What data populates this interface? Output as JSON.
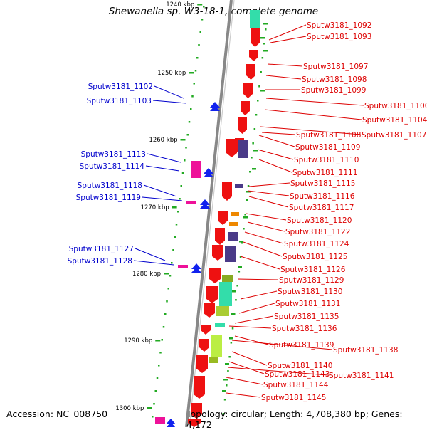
{
  "title": "Shewanella sp. W3-18-1, complete genome",
  "footer": {
    "accession": "Accession: NC_008750",
    "topology": "Topology: circular; Length: 4,708,380 bp; Genes: 4,172"
  },
  "colors": {
    "left_label": "#0000cc",
    "right_label": "#dd0000",
    "backbone": "#888888",
    "tick": "#119911"
  },
  "scale_marks": [
    "1240 kbp",
    "1250 kbp",
    "1260 kbp",
    "1270 kbp",
    "1280 kbp",
    "1290 kbp",
    "1300 kbp"
  ],
  "left_genes": [
    "Sputw3181_1102",
    "Sputw3181_1103",
    "Sputw3181_1113",
    "Sputw3181_1114",
    "Sputw3181_1118",
    "Sputw3181_1119",
    "Sputw3181_1127",
    "Sputw3181_1128"
  ],
  "right_genes": [
    "Sputw3181_1092",
    "Sputw3181_1093",
    "Sputw3181_1097",
    "Sputw3181_1098",
    "Sputw3181_1099",
    "Sputw3181_1100",
    "Sputw3181_1104",
    "Sputw3181_1108",
    "Sputw3181_1107",
    "Sputw3181_1109",
    "Sputw3181_1110",
    "Sputw3181_1111",
    "Sputw3181_1115",
    "Sputw3181_1116",
    "Sputw3181_1117",
    "Sputw3181_1120",
    "Sputw3181_1122",
    "Sputw3181_1124",
    "Sputw3181_1125",
    "Sputw3181_1126",
    "Sputw3181_1129",
    "Sputw3181_1130",
    "Sputw3181_1131",
    "Sputw3181_1135",
    "Sputw3181_1136",
    "Sputw3181_1139",
    "Sputw3181_1138",
    "Sputw3181_1140",
    "Sputw3181_1143",
    "Sputw3181_1141",
    "Sputw3181_1144",
    "Sputw3181_1145"
  ]
}
